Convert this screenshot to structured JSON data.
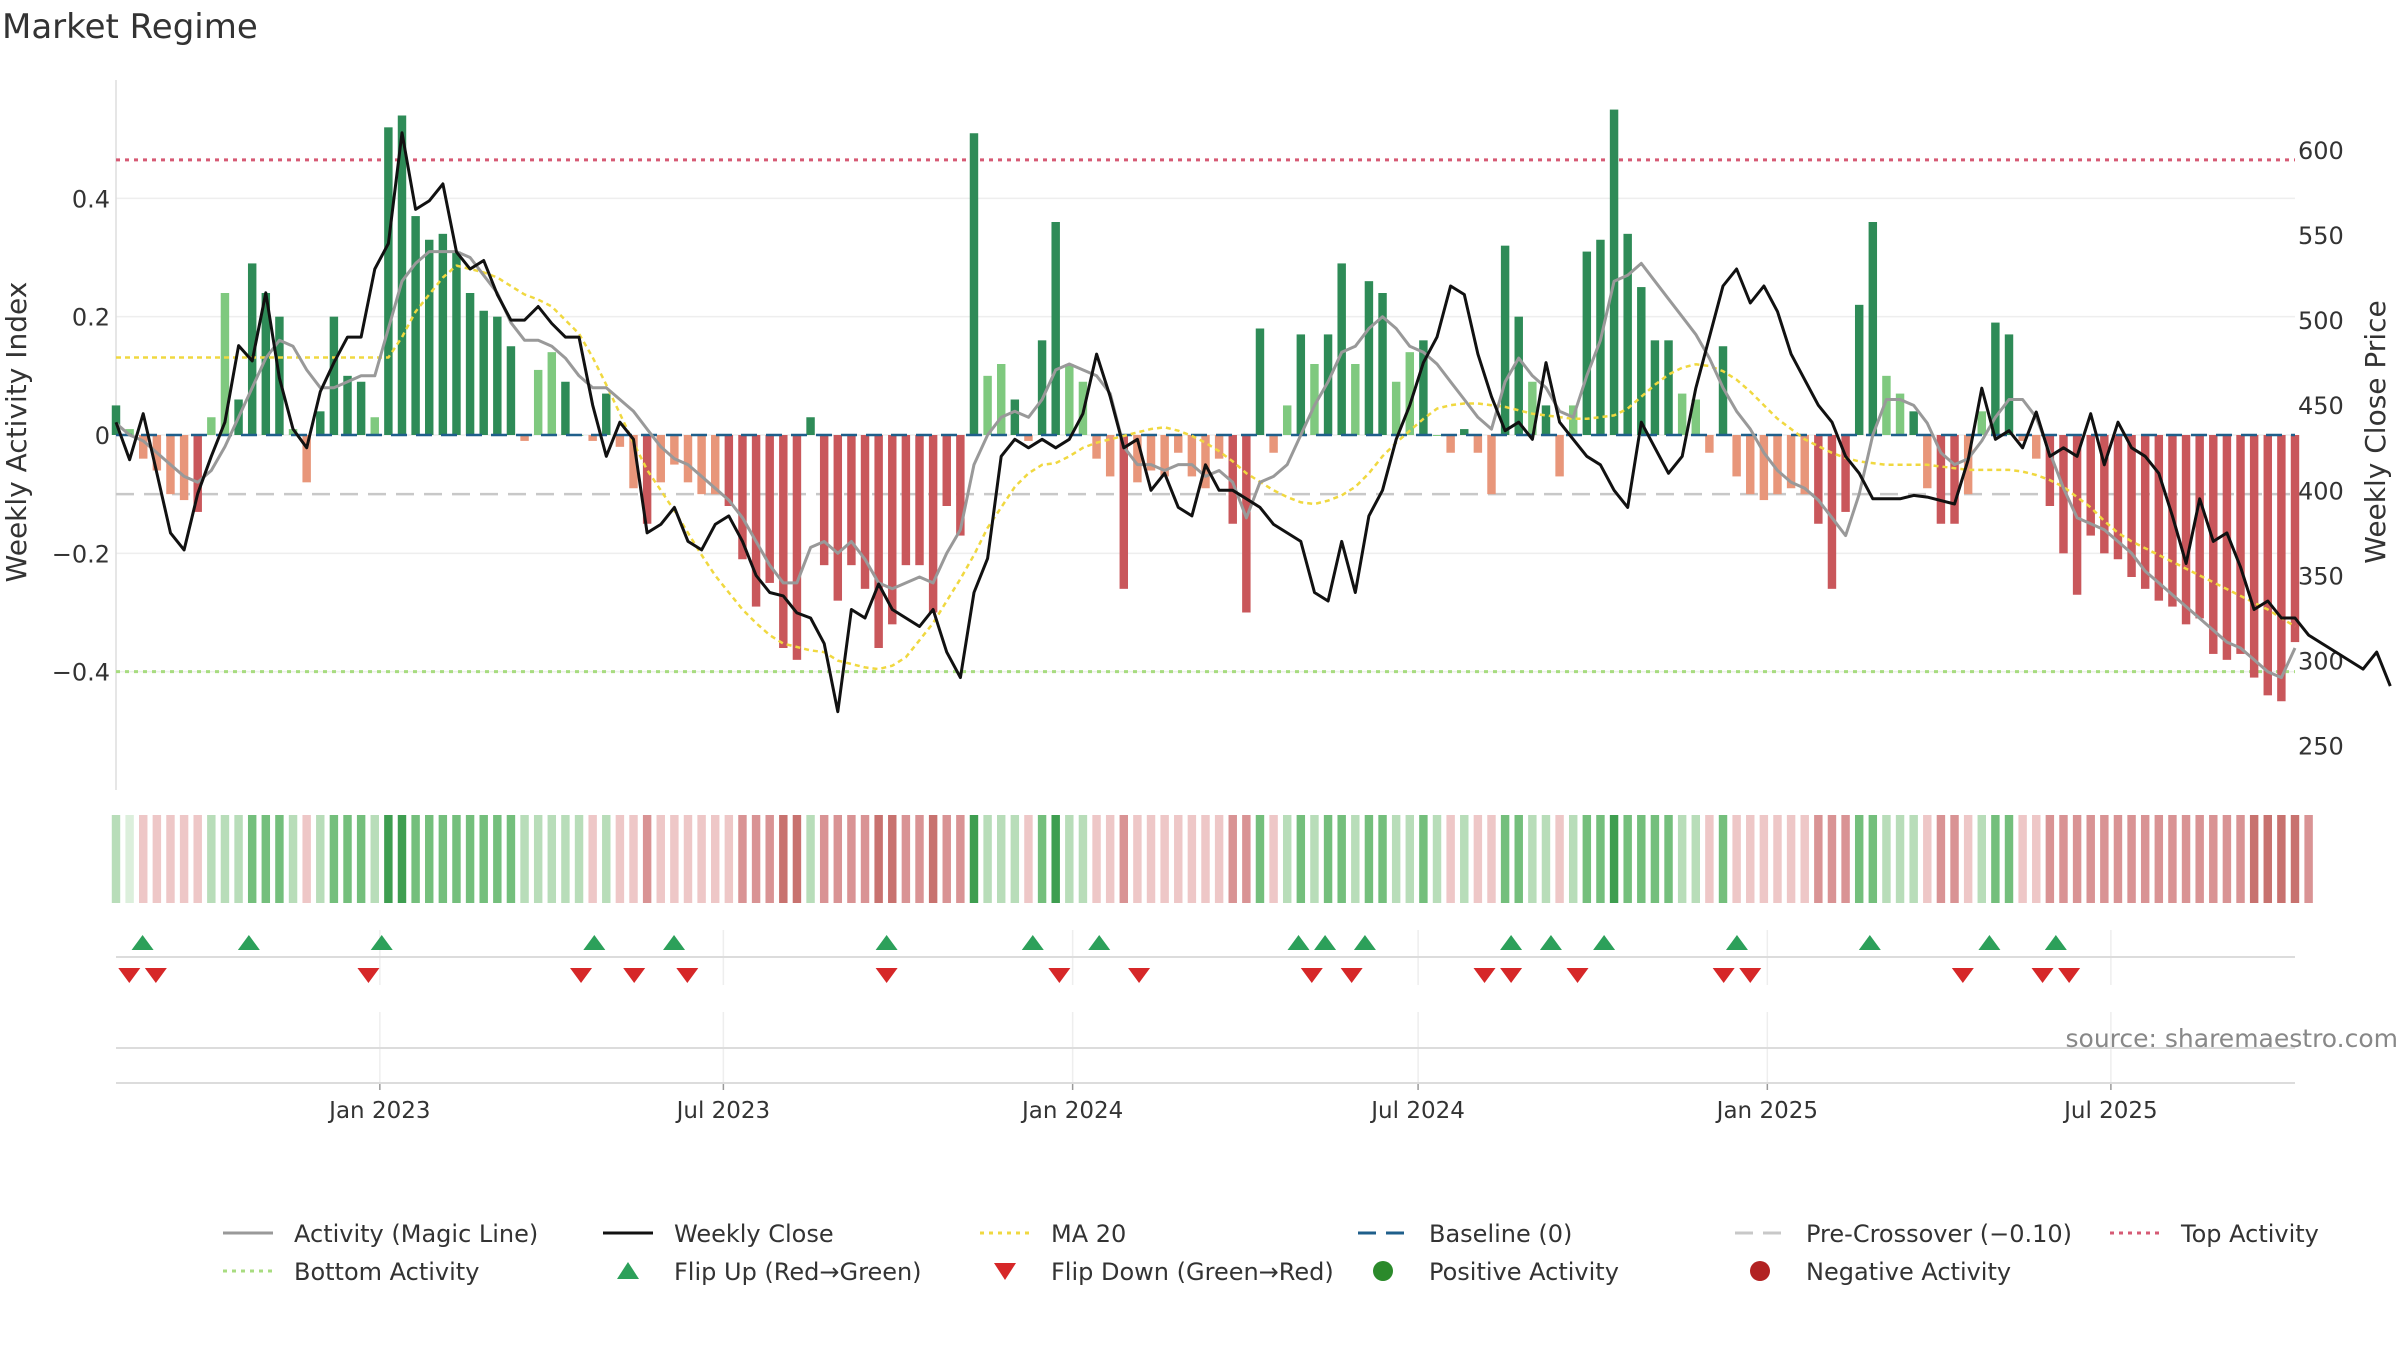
{
  "chart_data": {
    "type": "bar",
    "title": "Market Regime",
    "source": "source: sharemaestro.com",
    "y_left_label": "Weekly Activity Index",
    "y_right_label": "Weekly Close Price",
    "y_left_range": [
      -0.6,
      0.6
    ],
    "y_left_ticks": [
      {
        "value": 0.4,
        "label": "0.4"
      },
      {
        "value": 0.2,
        "label": "0.2"
      },
      {
        "value": 0.0,
        "label": "0"
      },
      {
        "value": -0.2,
        "label": "−0.2"
      },
      {
        "value": -0.4,
        "label": "−0.4"
      }
    ],
    "y_right_range": [
      224,
      641
    ],
    "y_right_ticks": [
      600,
      550,
      500,
      450,
      400,
      350,
      300,
      250
    ],
    "x_start": "2022-08-15",
    "x_end": "2025-10-06",
    "x_ticks": [
      {
        "date": "2023-01-01",
        "label": "Jan 2023"
      },
      {
        "date": "2023-07-01",
        "label": "Jul 2023"
      },
      {
        "date": "2024-01-01",
        "label": "Jan 2024"
      },
      {
        "date": "2024-07-01",
        "label": "Jul 2024"
      },
      {
        "date": "2025-01-01",
        "label": "Jan 2025"
      },
      {
        "date": "2025-07-01",
        "label": "Jul 2025"
      }
    ],
    "reference_lines": {
      "top_activity": 0.465,
      "bottom_activity": -0.4,
      "pre_crossover": -0.1,
      "baseline": 0
    },
    "activity_values": [
      0.05,
      0.01,
      -0.04,
      -0.06,
      -0.1,
      -0.11,
      -0.13,
      0.03,
      0.24,
      0.06,
      0.29,
      0.24,
      0.2,
      0.01,
      -0.08,
      0.04,
      0.2,
      0.1,
      0.09,
      0.03,
      0.52,
      0.54,
      0.37,
      0.33,
      0.34,
      0.31,
      0.24,
      0.21,
      0.2,
      0.15,
      -0.01,
      0.11,
      0.14,
      0.09,
      0,
      -0.01,
      0.07,
      -0.02,
      -0.09,
      -0.15,
      -0.08,
      -0.05,
      -0.08,
      -0.1,
      -0.1,
      -0.12,
      -0.21,
      -0.29,
      -0.25,
      -0.36,
      -0.38,
      0.03,
      -0.22,
      -0.28,
      -0.22,
      -0.26,
      -0.36,
      -0.32,
      -0.22,
      -0.22,
      -0.3,
      -0.12,
      -0.17,
      0.51,
      0.1,
      0.12,
      0.06,
      -0.01,
      0.16,
      0.36,
      0.12,
      0.09,
      -0.04,
      -0.07,
      -0.26,
      -0.08,
      -0.06,
      -0.07,
      -0.03,
      -0.07,
      -0.09,
      -0.04,
      -0.15,
      -0.3,
      0.18,
      -0.03,
      0.05,
      0.17,
      0.12,
      0.17,
      0.29,
      0.12,
      0.26,
      0.24,
      0.09,
      0.14,
      0.16,
      0,
      -0.03,
      0.01,
      -0.03,
      -0.1,
      0.32,
      0.2,
      0.09,
      0.05,
      -0.07,
      0.05,
      0.31,
      0.33,
      0.55,
      0.34,
      0.25,
      0.16,
      0.16,
      0.07,
      0.06,
      -0.03,
      0.15,
      -0.07,
      -0.1,
      -0.11,
      -0.1,
      -0.09,
      -0.1,
      -0.15,
      -0.26,
      -0.13,
      0.22,
      0.36,
      0.1,
      0.07,
      0.04,
      -0.09,
      -0.15,
      -0.15,
      -0.1,
      0.04,
      0.19,
      0.17,
      -0.01,
      -0.04,
      -0.12,
      -0.2,
      -0.27,
      -0.17,
      -0.2,
      -0.21,
      -0.24,
      -0.26,
      -0.28,
      -0.29,
      -0.32,
      -0.31,
      -0.37,
      -0.38,
      -0.37,
      -0.41,
      -0.44,
      -0.45,
      -0.35
    ],
    "activity_magic_line": [
      0.02,
      0.0,
      -0.01,
      -0.03,
      -0.05,
      -0.07,
      -0.08,
      -0.06,
      -0.02,
      0.03,
      0.08,
      0.13,
      0.16,
      0.15,
      0.11,
      0.08,
      0.08,
      0.09,
      0.1,
      0.1,
      0.18,
      0.26,
      0.29,
      0.31,
      0.31,
      0.31,
      0.3,
      0.27,
      0.24,
      0.19,
      0.16,
      0.16,
      0.15,
      0.13,
      0.1,
      0.08,
      0.08,
      0.06,
      0.04,
      0.01,
      -0.02,
      -0.04,
      -0.05,
      -0.07,
      -0.09,
      -0.11,
      -0.14,
      -0.18,
      -0.22,
      -0.25,
      -0.25,
      -0.19,
      -0.18,
      -0.2,
      -0.18,
      -0.21,
      -0.25,
      -0.26,
      -0.25,
      -0.24,
      -0.25,
      -0.2,
      -0.16,
      -0.05,
      0.0,
      0.03,
      0.04,
      0.03,
      0.06,
      0.11,
      0.12,
      0.11,
      0.1,
      0.07,
      -0.02,
      -0.05,
      -0.05,
      -0.06,
      -0.05,
      -0.05,
      -0.07,
      -0.06,
      -0.08,
      -0.14,
      -0.08,
      -0.07,
      -0.05,
      0.0,
      0.05,
      0.09,
      0.14,
      0.15,
      0.18,
      0.2,
      0.18,
      0.15,
      0.14,
      0.12,
      0.09,
      0.06,
      0.03,
      0.01,
      0.09,
      0.13,
      0.1,
      0.08,
      0.04,
      0.03,
      0.1,
      0.16,
      0.26,
      0.27,
      0.29,
      0.26,
      0.23,
      0.2,
      0.17,
      0.13,
      0.08,
      0.04,
      0.01,
      -0.03,
      -0.06,
      -0.08,
      -0.09,
      -0.11,
      -0.14,
      -0.17,
      -0.1,
      0.0,
      0.06,
      0.06,
      0.05,
      0.02,
      -0.03,
      -0.05,
      -0.04,
      -0.01,
      0.03,
      0.06,
      0.06,
      0.03,
      -0.03,
      -0.09,
      -0.14,
      -0.15,
      -0.16,
      -0.18,
      -0.2,
      -0.23,
      -0.25,
      -0.27,
      -0.29,
      -0.31,
      -0.33,
      -0.35,
      -0.36,
      -0.38,
      -0.4,
      -0.41,
      -0.36
    ],
    "weekly_close": [
      440,
      418,
      445,
      410,
      375,
      365,
      398,
      420,
      440,
      485,
      476,
      516,
      466,
      436,
      425,
      458,
      475,
      490,
      490,
      530,
      545,
      610,
      565,
      570,
      580,
      540,
      530,
      535,
      515,
      500,
      500,
      508,
      498,
      490,
      490,
      450,
      420,
      440,
      430,
      375,
      380,
      390,
      370,
      365,
      380,
      385,
      370,
      350,
      340,
      338,
      328,
      325,
      310,
      270,
      330,
      325,
      345,
      330,
      325,
      320,
      330,
      305,
      290,
      340,
      360,
      420,
      430,
      425,
      430,
      425,
      430,
      445,
      480,
      455,
      425,
      430,
      400,
      410,
      390,
      385,
      415,
      400,
      400,
      395,
      390,
      380,
      375,
      370,
      340,
      335,
      370,
      340,
      385,
      400,
      430,
      450,
      475,
      490,
      520,
      515,
      480,
      455,
      435,
      440,
      430,
      475,
      440,
      430,
      420,
      415,
      400,
      390,
      440,
      425,
      410,
      420,
      460,
      490,
      520,
      530,
      510,
      520,
      505,
      480,
      465,
      450,
      440,
      420,
      410,
      395,
      395,
      395,
      397,
      396,
      394,
      392,
      418,
      460,
      430,
      435,
      425,
      446,
      420,
      425,
      420,
      445,
      415,
      440,
      425,
      420,
      410,
      385,
      357,
      395,
      370,
      375,
      355,
      330,
      335,
      325,
      325,
      315,
      310,
      305,
      300,
      295,
      305,
      285
    ],
    "ma20": [
      478,
      478,
      478,
      478,
      478,
      478,
      478,
      478,
      478,
      478,
      478,
      478,
      478,
      478,
      478,
      478,
      478,
      478,
      478,
      478,
      478,
      490,
      505,
      515,
      525,
      532,
      530,
      528,
      525,
      520,
      515,
      512,
      508,
      500,
      492,
      478,
      462,
      445,
      428,
      412,
      400,
      388,
      375,
      362,
      350,
      340,
      330,
      322,
      315,
      310,
      308,
      306,
      305,
      300,
      298,
      296,
      295,
      297,
      302,
      312,
      322,
      335,
      348,
      362,
      378,
      390,
      402,
      410,
      415,
      416,
      420,
      425,
      428,
      430,
      432,
      434,
      436,
      437,
      435,
      432,
      428,
      423,
      417,
      410,
      405,
      400,
      396,
      393,
      392,
      394,
      397,
      402,
      410,
      420,
      428,
      435,
      442,
      448,
      450,
      451,
      451,
      450,
      449,
      447,
      445,
      444,
      443,
      442,
      442,
      443,
      444,
      448,
      455,
      462,
      468,
      472,
      474,
      473,
      470,
      465,
      458,
      450,
      442,
      436,
      430,
      426,
      422,
      419,
      417,
      416,
      415,
      415,
      415,
      415,
      414,
      413,
      412,
      412,
      412,
      412,
      411,
      409,
      406,
      402,
      396,
      390,
      382,
      375,
      370,
      366,
      362,
      358,
      354,
      350,
      346,
      342,
      338,
      334,
      330,
      325,
      320
    ],
    "tape_levels": [
      1,
      0,
      -1,
      -1,
      -1,
      -1,
      -1,
      1,
      1,
      1,
      2,
      2,
      2,
      1,
      -1,
      1,
      2,
      2,
      2,
      1,
      3,
      3,
      2,
      2,
      2,
      2,
      2,
      2,
      2,
      2,
      1,
      1,
      1,
      1,
      1,
      -1,
      1,
      -1,
      -1,
      -2,
      -1,
      -1,
      -1,
      -1,
      -1,
      -1,
      -2,
      -2,
      -2,
      -3,
      -3,
      1,
      -2,
      -2,
      -2,
      -2,
      -3,
      -3,
      -2,
      -2,
      -3,
      -2,
      -2,
      3,
      1,
      1,
      1,
      -1,
      2,
      3,
      1,
      1,
      -1,
      -1,
      -2,
      -1,
      -1,
      -1,
      -1,
      -1,
      -1,
      -1,
      -2,
      -2,
      2,
      -1,
      1,
      2,
      1,
      2,
      2,
      1,
      2,
      2,
      1,
      1,
      2,
      1,
      -1,
      1,
      -1,
      -1,
      2,
      2,
      1,
      1,
      -1,
      1,
      2,
      2,
      3,
      2,
      2,
      2,
      2,
      1,
      1,
      -1,
      2,
      -1,
      -1,
      -1,
      -1,
      -1,
      -1,
      -2,
      -2,
      -2,
      2,
      2,
      1,
      1,
      1,
      -1,
      -2,
      -2,
      -1,
      1,
      2,
      2,
      -1,
      -1,
      -2,
      -2,
      -2,
      -2,
      -2,
      -2,
      -2,
      -2,
      -2,
      -2,
      -2,
      -2,
      -2,
      -2,
      -2,
      -3,
      -3,
      -3,
      -3,
      -2
    ],
    "flip_up_dates": [
      "2022-08-29",
      "2022-10-24",
      "2023-01-02",
      "2023-04-24",
      "2023-06-05",
      "2023-09-25",
      "2023-12-11",
      "2024-01-15",
      "2024-04-29",
      "2024-05-13",
      "2024-06-03",
      "2024-08-19",
      "2024-09-09",
      "2024-10-07",
      "2024-12-16",
      "2025-02-24",
      "2025-04-28",
      "2025-06-02"
    ],
    "flip_down_dates": [
      "2022-08-22",
      "2022-09-05",
      "2022-12-26",
      "2023-04-17",
      "2023-05-15",
      "2023-06-12",
      "2023-09-25",
      "2023-12-25",
      "2024-02-05",
      "2024-05-06",
      "2024-05-27",
      "2024-08-05",
      "2024-08-19",
      "2024-09-23",
      "2024-12-09",
      "2024-12-23",
      "2025-04-14",
      "2025-05-26",
      "2025-06-09"
    ],
    "colors": {
      "pos_strong": "#2e8b57",
      "pos_weak": "#7fc97f",
      "neg_strong": "#c9575b",
      "neg_weak": "#e8967a",
      "magic_line": "#999999",
      "close_line": "#111111",
      "ma20": "#f0d840",
      "baseline": "#1f5f8b",
      "pre_crossover": "#c8c8c8",
      "top_activity": "#d65a74",
      "bottom_activity": "#a8dc80",
      "flip_up": "#2ca05a",
      "flip_down": "#d62728",
      "positive_dot": "#2b8a2b",
      "negative_dot": "#b22222"
    },
    "legend": [
      {
        "label": "Activity (Magic Line)",
        "kind": "line",
        "color": "#999999",
        "style": "solid"
      },
      {
        "label": "Weekly Close",
        "kind": "line",
        "color": "#111111",
        "style": "solid"
      },
      {
        "label": "MA 20",
        "kind": "line",
        "color": "#f0d840",
        "style": "dotted"
      },
      {
        "label": "Baseline (0)",
        "kind": "line",
        "color": "#1f5f8b",
        "style": "dashed"
      },
      {
        "label": "Pre-Crossover (−0.10)",
        "kind": "line",
        "color": "#c8c8c8",
        "style": "dashed"
      },
      {
        "label": "Top Activity",
        "kind": "line",
        "color": "#d65a74",
        "style": "dotted"
      },
      {
        "label": "Bottom Activity",
        "kind": "line",
        "color": "#a8dc80",
        "style": "dotted"
      },
      {
        "label": "Flip Up (Red→Green)",
        "kind": "tri-up",
        "color": "#2ca05a"
      },
      {
        "label": "Flip Down (Green→Red)",
        "kind": "tri-down",
        "color": "#d62728"
      },
      {
        "label": "Positive Activity",
        "kind": "dot",
        "color": "#2b8a2b"
      },
      {
        "label": "Negative Activity",
        "kind": "dot",
        "color": "#b22222"
      }
    ]
  }
}
